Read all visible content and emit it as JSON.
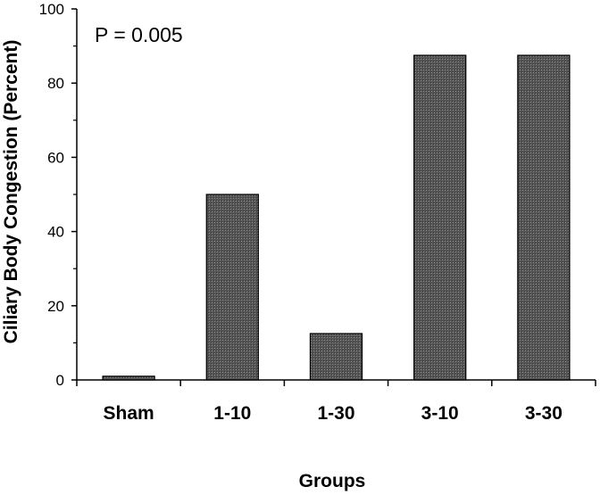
{
  "chart_data": {
    "type": "bar",
    "categories": [
      "Sham",
      "1-10",
      "1-30",
      "3-10",
      "3-30"
    ],
    "values": [
      1,
      50,
      12.5,
      87.5,
      87.5
    ],
    "ylim": [
      0,
      100
    ],
    "yticks": [
      0,
      20,
      40,
      60,
      80,
      100
    ],
    "xlabel": "Groups",
    "ylabel": "Ciliary Body Congestion (Percent)",
    "annotation": "P = 0.005",
    "grid": false,
    "bar_color": "#555555",
    "bar_edge_color": "#000000"
  }
}
